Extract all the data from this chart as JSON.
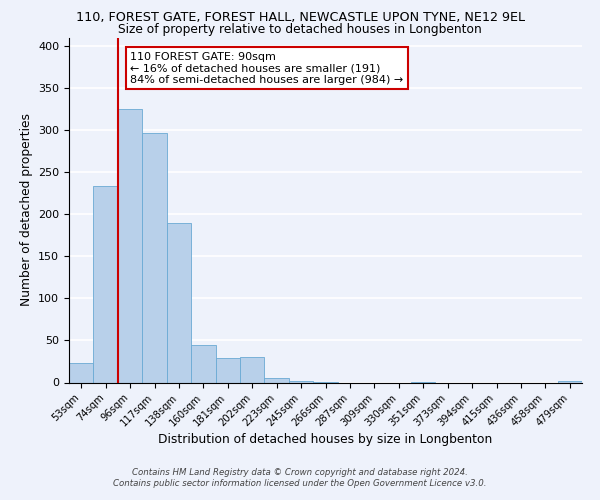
{
  "title1": "110, FOREST GATE, FOREST HALL, NEWCASTLE UPON TYNE, NE12 9EL",
  "title2": "Size of property relative to detached houses in Longbenton",
  "xlabel": "Distribution of detached houses by size in Longbenton",
  "ylabel": "Number of detached properties",
  "bin_labels": [
    "53sqm",
    "74sqm",
    "96sqm",
    "117sqm",
    "138sqm",
    "160sqm",
    "181sqm",
    "202sqm",
    "223sqm",
    "245sqm",
    "266sqm",
    "287sqm",
    "309sqm",
    "330sqm",
    "351sqm",
    "373sqm",
    "394sqm",
    "415sqm",
    "436sqm",
    "458sqm",
    "479sqm"
  ],
  "bar_values": [
    23,
    233,
    325,
    297,
    190,
    44,
    29,
    30,
    5,
    2,
    1,
    0,
    0,
    0,
    1,
    0,
    0,
    0,
    0,
    0,
    2
  ],
  "bar_color": "#b8d0ea",
  "bar_edge_color": "#6aaad4",
  "vline_color": "#cc0000",
  "annotation_text": "110 FOREST GATE: 90sqm\n← 16% of detached houses are smaller (191)\n84% of semi-detached houses are larger (984) →",
  "annotation_box_color": "#ffffff",
  "annotation_box_edge": "#cc0000",
  "ylim": [
    0,
    410
  ],
  "yticks": [
    0,
    50,
    100,
    150,
    200,
    250,
    300,
    350,
    400
  ],
  "footer": "Contains HM Land Registry data © Crown copyright and database right 2024.\nContains public sector information licensed under the Open Government Licence v3.0.",
  "background_color": "#eef2fb"
}
